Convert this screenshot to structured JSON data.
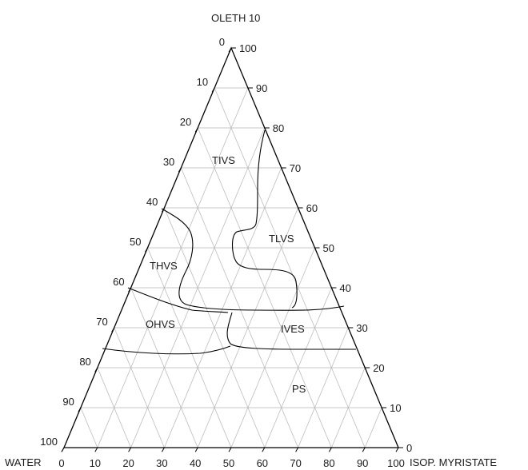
{
  "diagram": {
    "type": "ternary-phase-diagram",
    "vertices": {
      "top": "OLETH 10",
      "left": "WATER",
      "right": "ISOP. MYRISTATE"
    },
    "tick_values": [
      "0",
      "10",
      "20",
      "30",
      "40",
      "50",
      "60",
      "70",
      "80",
      "90",
      "100"
    ],
    "grid_step": 10,
    "regions": [
      {
        "name": "TIVS"
      },
      {
        "name": "TLVS"
      },
      {
        "name": "THVS"
      },
      {
        "name": "OHVS"
      },
      {
        "name": "IVES"
      },
      {
        "name": "PS"
      }
    ],
    "colors": {
      "frame": "#000000",
      "grid": "#b4b4b4",
      "text": "#1a1a1a"
    }
  }
}
